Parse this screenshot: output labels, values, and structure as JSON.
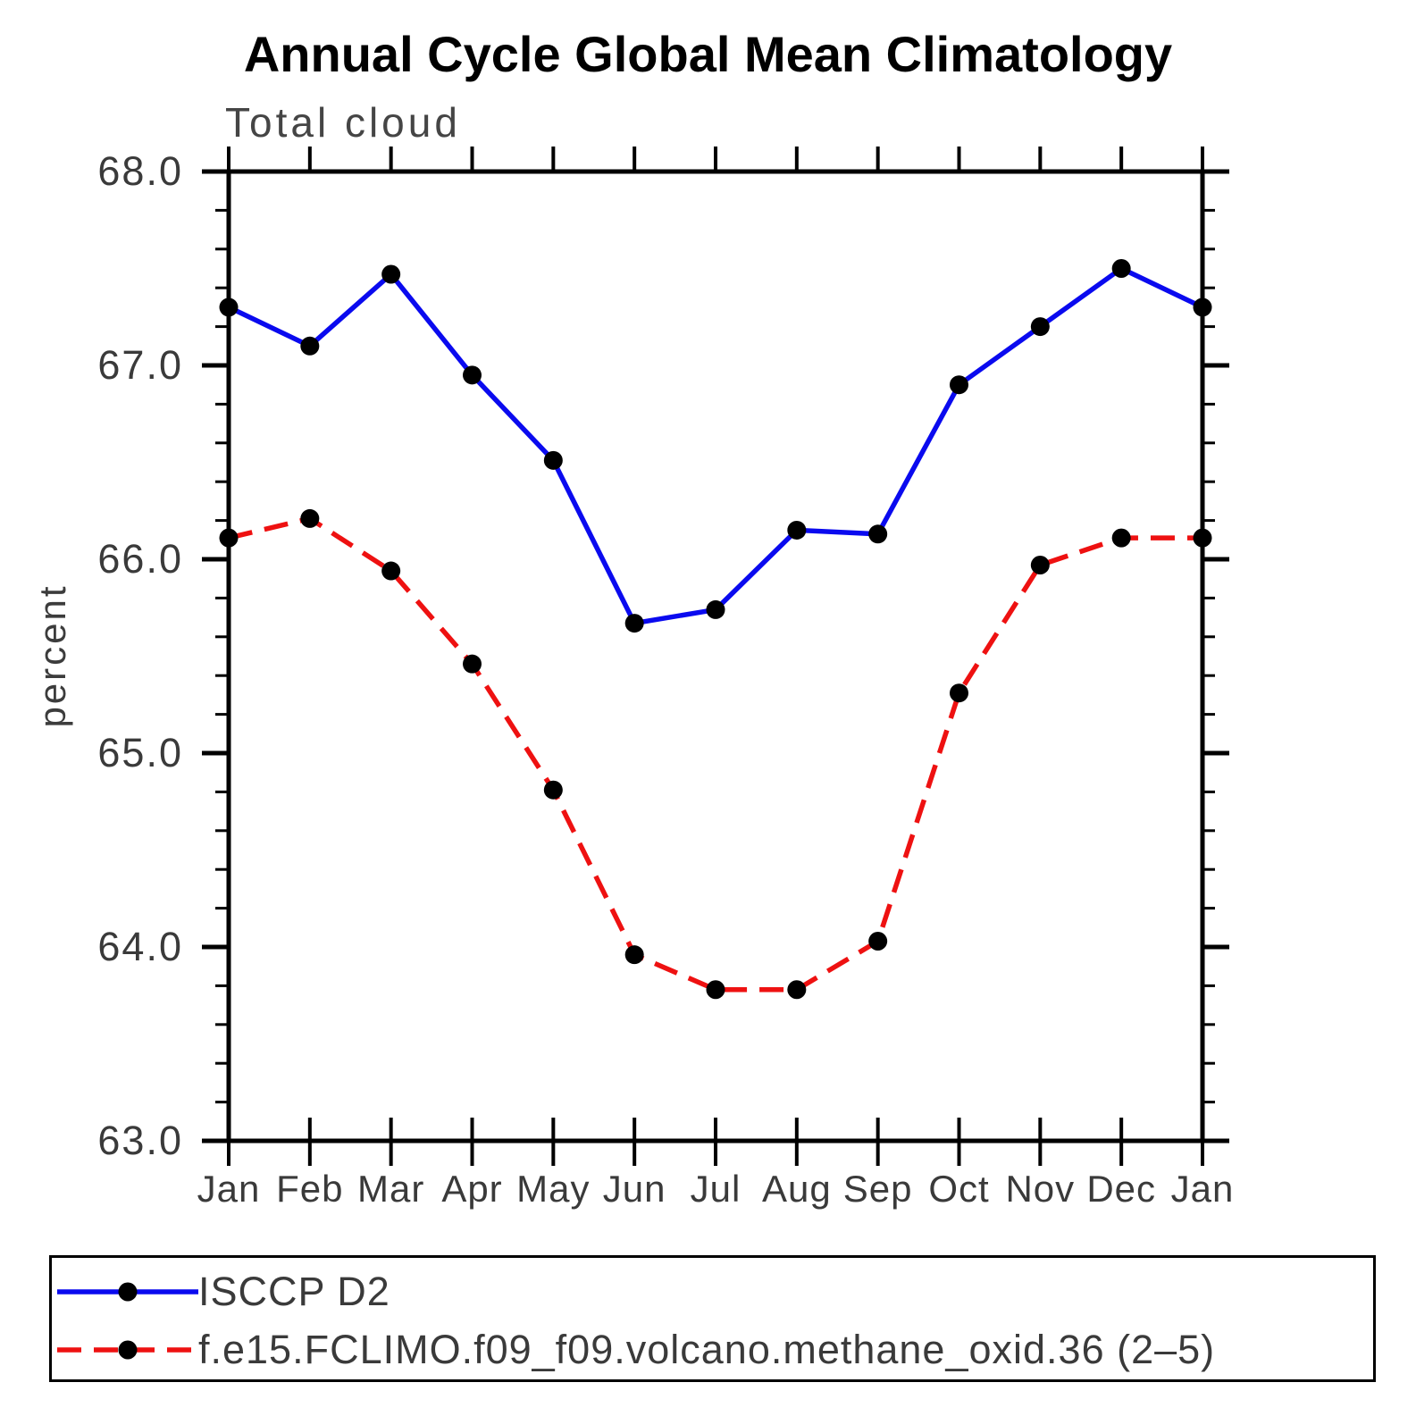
{
  "page": {
    "background": "#ffffff",
    "axis_color": "#000000",
    "text_color": "#3a3a3a"
  },
  "header": {
    "title": "Annual Cycle Global Mean Climatology",
    "subtitle": "Total cloud"
  },
  "chart_data": {
    "type": "line",
    "title": "Annual Cycle Global Mean Climatology",
    "subtitle": "Total cloud",
    "xlabel": "",
    "ylabel": "percent",
    "categories": [
      "Jan",
      "Feb",
      "Mar",
      "Apr",
      "May",
      "Jun",
      "Jul",
      "Aug",
      "Sep",
      "Oct",
      "Nov",
      "Dec",
      "Jan"
    ],
    "ylim": [
      63.0,
      68.0
    ],
    "y_major_ticks": [
      68.0,
      67.0,
      66.0,
      65.0,
      64.0,
      63.0
    ],
    "y_major_tick_labels": [
      "68.0",
      "67.0",
      "66.0",
      "65.0",
      "64.0",
      "63.0"
    ],
    "y_minor_step": 0.2,
    "grid": false,
    "legend_position": "bottom-box",
    "series": [
      {
        "name": "ISCCP D2",
        "color": "#0a0aef",
        "line_style": "solid",
        "marker": "circle",
        "marker_color": "#000000",
        "values": [
          67.3,
          67.1,
          67.47,
          66.95,
          66.51,
          65.67,
          65.74,
          66.15,
          66.13,
          66.9,
          67.2,
          67.5,
          67.3
        ]
      },
      {
        "name": "f.e15.FCLIMO.f09_f09.volcano.methane_oxid.36 (2–5)",
        "color": "#ee1111",
        "line_style": "dashed",
        "marker": "circle",
        "marker_color": "#000000",
        "values": [
          66.11,
          66.21,
          65.94,
          65.46,
          64.81,
          63.96,
          63.78,
          63.78,
          64.03,
          65.31,
          65.97,
          66.11,
          66.11
        ]
      }
    ]
  }
}
